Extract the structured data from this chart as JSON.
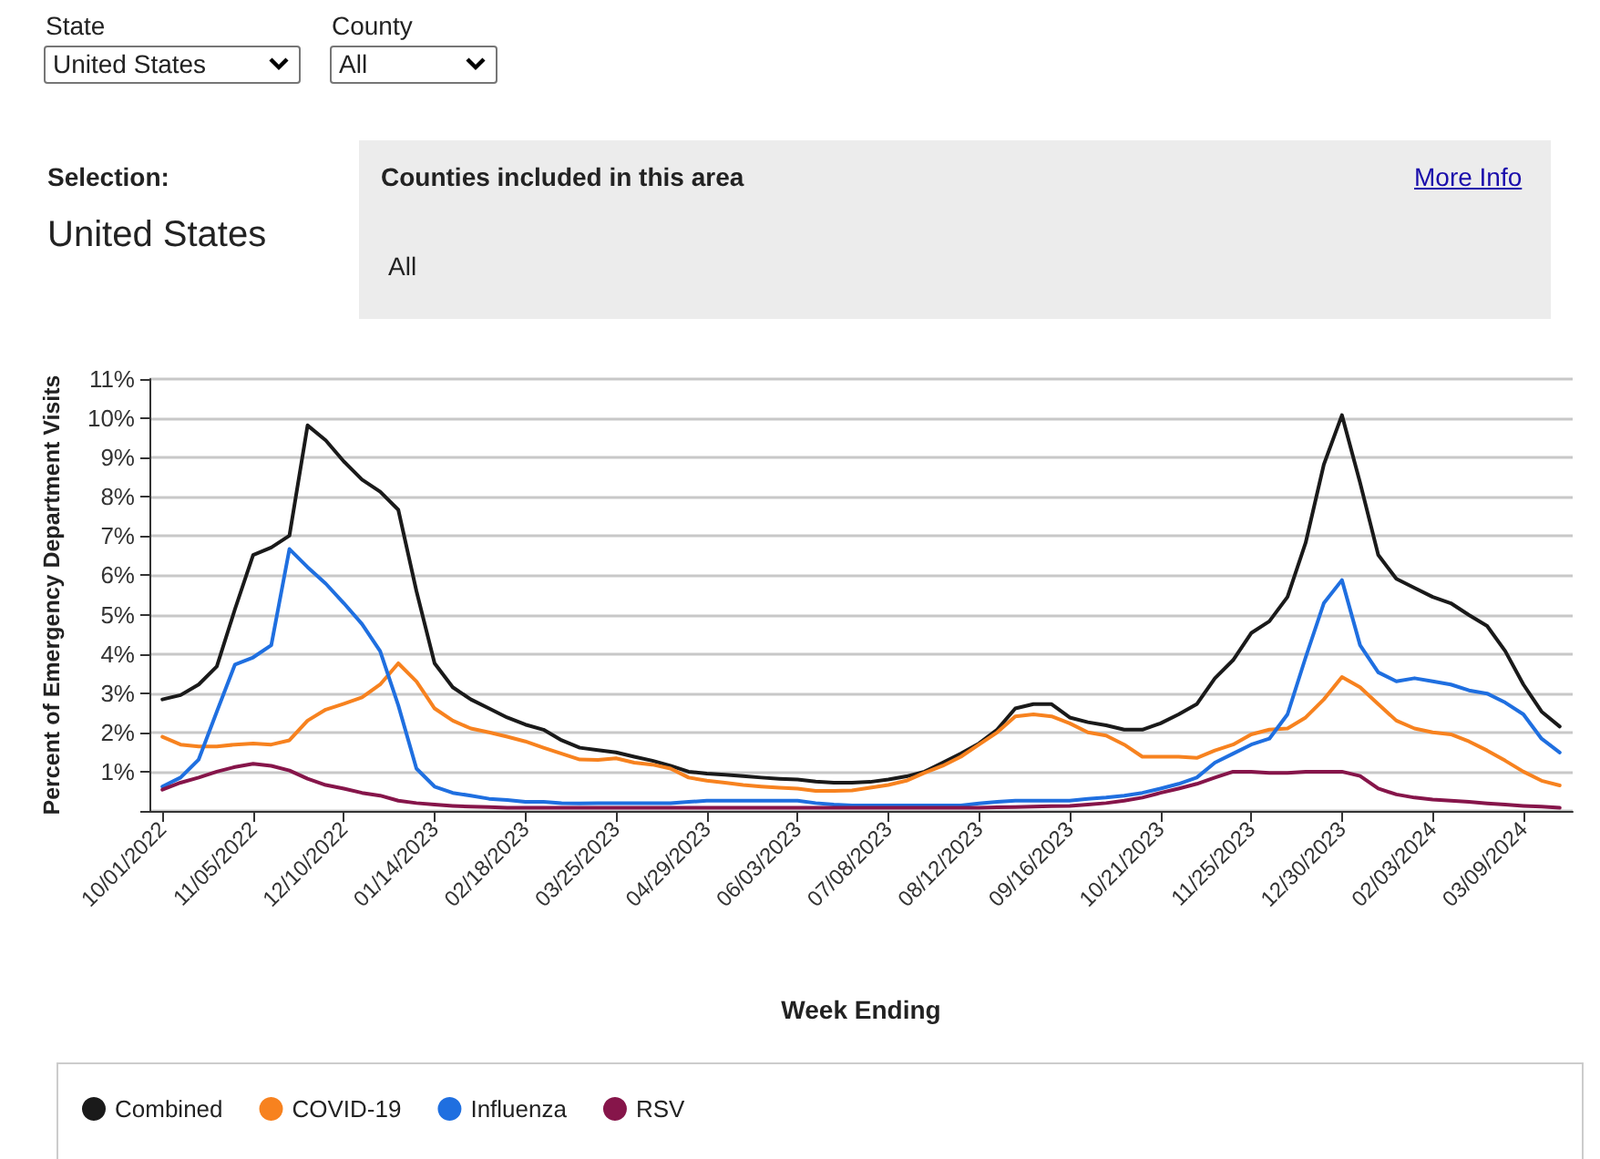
{
  "chart_data": {
    "type": "line",
    "annotations": [
      "State",
      "United States",
      "County",
      "All",
      "Selection:",
      "United States",
      "Counties included in this area",
      "More Info",
      "All"
    ],
    "xlabel": "Week Ending",
    "ylabel": "Percent of Emergency Department Visits",
    "x": [
      "2022-10-01",
      "2022-10-08",
      "2022-10-15",
      "2022-10-22",
      "2022-10-29",
      "2022-11-05",
      "2022-11-12",
      "2022-11-19",
      "2022-11-26",
      "2022-12-03",
      "2022-12-10",
      "2022-12-17",
      "2022-12-24",
      "2022-12-31",
      "2023-01-07",
      "2023-01-14",
      "2023-01-21",
      "2023-01-28",
      "2023-02-04",
      "2023-02-11",
      "2023-02-18",
      "2023-02-25",
      "2023-03-04",
      "2023-03-11",
      "2023-03-18",
      "2023-03-25",
      "2023-04-01",
      "2023-04-08",
      "2023-04-15",
      "2023-04-22",
      "2023-04-29",
      "2023-05-06",
      "2023-05-13",
      "2023-05-20",
      "2023-05-27",
      "2023-06-03",
      "2023-06-10",
      "2023-06-17",
      "2023-06-24",
      "2023-07-01",
      "2023-07-08",
      "2023-07-15",
      "2023-07-22",
      "2023-07-29",
      "2023-08-05",
      "2023-08-12",
      "2023-08-19",
      "2023-08-26",
      "2023-09-02",
      "2023-09-09",
      "2023-09-16",
      "2023-09-23",
      "2023-09-30",
      "2023-10-07",
      "2023-10-14",
      "2023-10-21",
      "2023-10-28",
      "2023-11-04",
      "2023-11-11",
      "2023-11-18",
      "2023-11-25",
      "2023-12-02",
      "2023-12-09",
      "2023-12-16",
      "2023-12-23",
      "2023-12-30",
      "2024-01-06",
      "2024-01-13",
      "2024-01-20",
      "2024-01-27",
      "2024-02-03",
      "2024-02-10",
      "2024-02-17",
      "2024-02-24",
      "2024-03-02",
      "2024-03-09",
      "2024-03-16",
      "2024-03-23"
    ],
    "series": [
      {
        "name": "Combined",
        "color": "#1a1a1a",
        "values": [
          2.84,
          2.95,
          3.22,
          3.68,
          5.14,
          6.52,
          6.71,
          7.01,
          9.82,
          9.44,
          8.9,
          8.44,
          8.13,
          7.67,
          5.6,
          3.76,
          3.15,
          2.84,
          2.61,
          2.38,
          2.2,
          2.07,
          1.8,
          1.61,
          1.55,
          1.49,
          1.38,
          1.28,
          1.15,
          1.0,
          0.95,
          0.92,
          0.89,
          0.85,
          0.82,
          0.8,
          0.75,
          0.72,
          0.72,
          0.74,
          0.8,
          0.88,
          1.0,
          1.23,
          1.46,
          1.72,
          2.07,
          2.61,
          2.72,
          2.72,
          2.38,
          2.26,
          2.18,
          2.07,
          2.07,
          2.23,
          2.46,
          2.72,
          3.38,
          3.84,
          4.53,
          4.83,
          5.45,
          6.83,
          8.82,
          10.08,
          8.36,
          6.52,
          5.91,
          5.68,
          5.45,
          5.29,
          4.99,
          4.71,
          4.07,
          3.22,
          2.53,
          2.15
        ]
      },
      {
        "name": "COVID-19",
        "color": "#f7821f",
        "values": [
          1.89,
          1.69,
          1.64,
          1.64,
          1.69,
          1.72,
          1.69,
          1.8,
          2.3,
          2.58,
          2.73,
          2.89,
          3.22,
          3.76,
          3.3,
          2.61,
          2.3,
          2.1,
          2.0,
          1.89,
          1.77,
          1.61,
          1.46,
          1.31,
          1.3,
          1.34,
          1.23,
          1.18,
          1.08,
          0.85,
          0.77,
          0.72,
          0.66,
          0.62,
          0.59,
          0.57,
          0.51,
          0.51,
          0.52,
          0.59,
          0.66,
          0.77,
          0.97,
          1.15,
          1.38,
          1.69,
          2.0,
          2.41,
          2.46,
          2.41,
          2.23,
          2.0,
          1.92,
          1.69,
          1.38,
          1.38,
          1.38,
          1.35,
          1.54,
          1.69,
          1.95,
          2.07,
          2.1,
          2.38,
          2.84,
          3.41,
          3.15,
          2.72,
          2.3,
          2.1,
          2.0,
          1.95,
          1.77,
          1.54,
          1.28,
          1.0,
          0.77,
          0.65
        ]
      },
      {
        "name": "Influenza",
        "color": "#1f6fe0",
        "values": [
          0.62,
          0.85,
          1.31,
          2.53,
          3.73,
          3.91,
          4.22,
          6.67,
          6.21,
          5.79,
          5.29,
          4.76,
          4.07,
          2.69,
          1.08,
          0.62,
          0.46,
          0.39,
          0.31,
          0.28,
          0.23,
          0.23,
          0.2,
          0.19,
          0.2,
          0.2,
          0.2,
          0.2,
          0.2,
          0.23,
          0.26,
          0.26,
          0.26,
          0.26,
          0.26,
          0.26,
          0.2,
          0.16,
          0.14,
          0.14,
          0.14,
          0.14,
          0.14,
          0.14,
          0.14,
          0.19,
          0.23,
          0.26,
          0.26,
          0.26,
          0.26,
          0.31,
          0.34,
          0.39,
          0.46,
          0.57,
          0.69,
          0.85,
          1.23,
          1.46,
          1.69,
          1.84,
          2.46,
          3.91,
          5.29,
          5.88,
          4.22,
          3.53,
          3.3,
          3.38,
          3.3,
          3.22,
          3.07,
          2.99,
          2.76,
          2.46,
          1.84,
          1.49
        ]
      },
      {
        "name": "RSV",
        "color": "#86154a",
        "values": [
          0.54,
          0.72,
          0.85,
          1.0,
          1.12,
          1.2,
          1.15,
          1.03,
          0.82,
          0.66,
          0.57,
          0.46,
          0.39,
          0.26,
          0.2,
          0.16,
          0.13,
          0.11,
          0.1,
          0.08,
          0.08,
          0.08,
          0.08,
          0.08,
          0.08,
          0.08,
          0.08,
          0.08,
          0.08,
          0.08,
          0.08,
          0.08,
          0.08,
          0.08,
          0.08,
          0.08,
          0.08,
          0.08,
          0.08,
          0.08,
          0.08,
          0.08,
          0.08,
          0.08,
          0.08,
          0.08,
          0.09,
          0.1,
          0.11,
          0.12,
          0.13,
          0.16,
          0.2,
          0.26,
          0.34,
          0.46,
          0.57,
          0.69,
          0.85,
          1.0,
          1.0,
          0.97,
          0.97,
          1.0,
          1.0,
          1.0,
          0.89,
          0.57,
          0.42,
          0.34,
          0.29,
          0.26,
          0.23,
          0.19,
          0.16,
          0.13,
          0.11,
          0.08
        ]
      }
    ],
    "xlim": [
      "2022-09-26",
      "2024-03-28"
    ],
    "xticks": [
      {
        "value": "2022-10-01",
        "label": "10/01/2022"
      },
      {
        "value": "2022-11-05",
        "label": "11/05/2022"
      },
      {
        "value": "2022-12-10",
        "label": "12/10/2022"
      },
      {
        "value": "2023-01-14",
        "label": "01/14/2023"
      },
      {
        "value": "2023-02-18",
        "label": "02/18/2023"
      },
      {
        "value": "2023-03-25",
        "label": "03/25/2023"
      },
      {
        "value": "2023-04-29",
        "label": "04/29/2023"
      },
      {
        "value": "2023-06-03",
        "label": "06/03/2023"
      },
      {
        "value": "2023-07-08",
        "label": "07/08/2023"
      },
      {
        "value": "2023-08-12",
        "label": "08/12/2023"
      },
      {
        "value": "2023-09-16",
        "label": "09/16/2023"
      },
      {
        "value": "2023-10-21",
        "label": "10/21/2023"
      },
      {
        "value": "2023-11-25",
        "label": "11/25/2023"
      },
      {
        "value": "2023-12-30",
        "label": "12/30/2023"
      },
      {
        "value": "2024-02-03",
        "label": "02/03/2024"
      },
      {
        "value": "2024-03-09",
        "label": "03/09/2024"
      }
    ],
    "ylim": [
      0,
      11
    ],
    "yticks": [
      {
        "value": 1,
        "label": "1%"
      },
      {
        "value": 2,
        "label": "2%"
      },
      {
        "value": 3,
        "label": "3%"
      },
      {
        "value": 4,
        "label": "4%"
      },
      {
        "value": 5,
        "label": "5%"
      },
      {
        "value": 6,
        "label": "6%"
      },
      {
        "value": 7,
        "label": "7%"
      },
      {
        "value": 8,
        "label": "8%"
      },
      {
        "value": 9,
        "label": "9%"
      },
      {
        "value": 10,
        "label": "10%"
      },
      {
        "value": 11,
        "label": "11%"
      }
    ],
    "grid": "y",
    "legend": "bottom",
    "marker": "none",
    "line_style": "solid"
  }
}
